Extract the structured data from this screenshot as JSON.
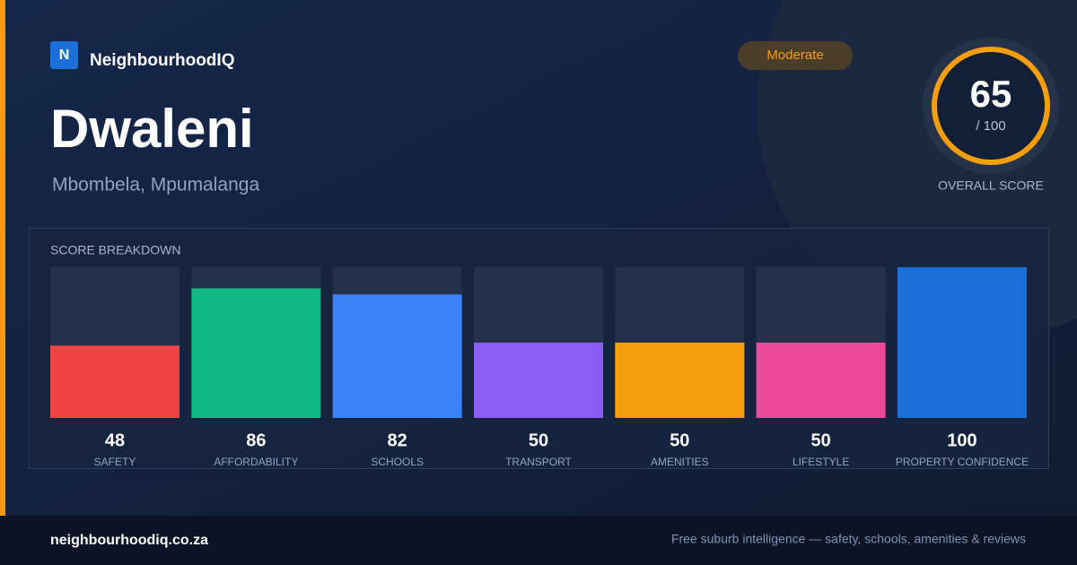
{
  "brand": {
    "logo": "N",
    "name": "NeighbourhoodIQ"
  },
  "badge": "Moderate",
  "suburb": "Dwaleni",
  "location": "Mbombela, Mpumalanga",
  "score": {
    "value": 65,
    "max": {
      "value": 100,
      "label": "/ 100"
    },
    "label": "OVERALL SCORE"
  },
  "breakdown": {
    "title": "SCORE BREAKDOWN",
    "items": [
      {
        "name": "SAFETY",
        "value": 48,
        "color": "#ef4444"
      },
      {
        "name": "AFFORDABILITY",
        "value": 86,
        "color": "#10b981"
      },
      {
        "name": "SCHOOLS",
        "value": 82,
        "color": "#3b82f6"
      },
      {
        "name": "TRANSPORT",
        "value": 50,
        "color": "#8b5cf6"
      },
      {
        "name": "AMENITIES",
        "value": 50,
        "color": "#f59e0b"
      },
      {
        "name": "LIFESTYLE",
        "value": 50,
        "color": "#ec4899"
      },
      {
        "name": "PROPERTY CONFIDENCE",
        "value": 100,
        "color": "#1d6fd8"
      }
    ]
  },
  "footer": {
    "site": "neighbourhoodiq.co.za",
    "tagline": "Free suburb intelligence — safety, schools, amenities & reviews"
  }
}
